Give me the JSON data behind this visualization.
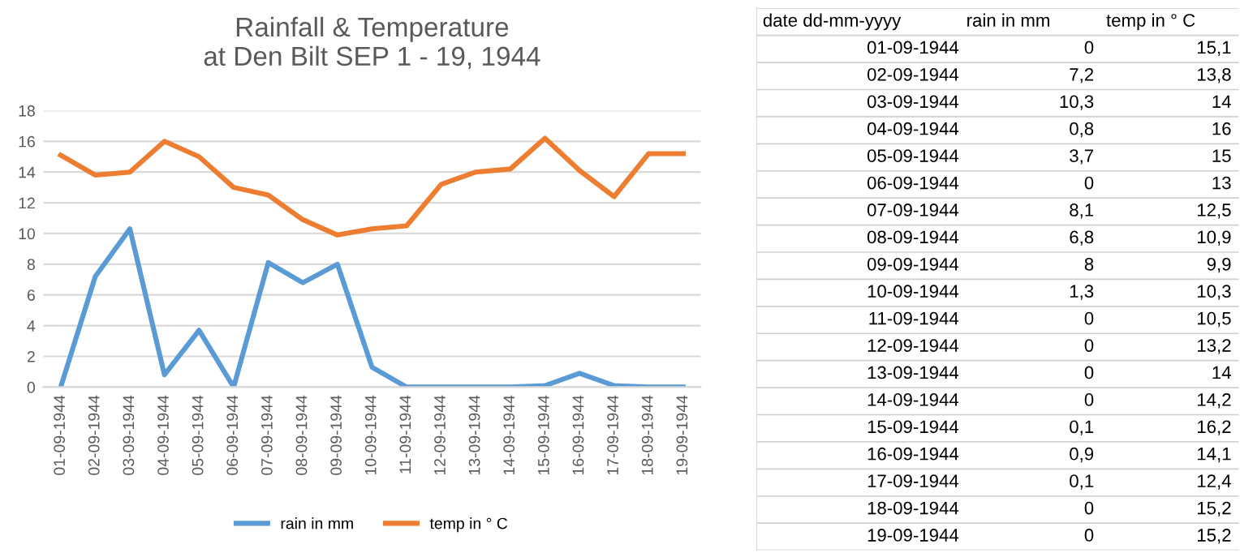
{
  "chart_data": [
    {
      "type": "line",
      "title": "Rainfall & Temperature\nat Den Bilt SEP 1 - 19, 1944",
      "categories": [
        "01-09-1944",
        "02-09-1944",
        "03-09-1944",
        "04-09-1944",
        "05-09-1944",
        "06-09-1944",
        "07-09-1944",
        "08-09-1944",
        "09-09-1944",
        "10-09-1944",
        "11-09-1944",
        "12-09-1944",
        "13-09-1944",
        "14-09-1944",
        "15-09-1944",
        "16-09-1944",
        "17-09-1944",
        "18-09-1944",
        "19-09-1944"
      ],
      "series": [
        {
          "name": "rain in mm",
          "color": "#5b9bd5",
          "values": [
            0,
            7.2,
            10.3,
            0.8,
            3.7,
            0,
            8.1,
            6.8,
            8,
            1.3,
            0,
            0,
            0,
            0,
            0.1,
            0.9,
            0.1,
            0,
            0
          ]
        },
        {
          "name": "temp in ° C",
          "color": "#ed7d31",
          "values": [
            15.1,
            13.8,
            14,
            16,
            15,
            13,
            12.5,
            10.9,
            9.9,
            10.3,
            10.5,
            13.2,
            14,
            14.2,
            16.2,
            14.1,
            12.4,
            15.2,
            15.2
          ]
        }
      ],
      "ylim": [
        0,
        18
      ],
      "yticks": [
        0,
        2,
        4,
        6,
        8,
        10,
        12,
        14,
        16,
        18
      ],
      "grid": "y",
      "legend": "bottom",
      "marker": "none",
      "line_style": "solid"
    },
    {
      "type": "other",
      "annotations": [
        "date dd-mm-yyyy",
        "rain in mm",
        "temp in ° C",
        "01-09-1944",
        "0",
        "15,1",
        "02-09-1944",
        "7,2",
        "13,8",
        "03-09-1944",
        "10,3",
        "14",
        "04-09-1944",
        "0,8",
        "16",
        "05-09-1944",
        "3,7",
        "15",
        "06-09-1944",
        "0",
        "13",
        "07-09-1944",
        "8,1",
        "12,5",
        "08-09-1944",
        "6,8",
        "10,9",
        "09-09-1944",
        "8",
        "9,9",
        "10-09-1944",
        "1,3",
        "10,3",
        "11-09-1944",
        "0",
        "10,5",
        "12-09-1944",
        "0",
        "13,2",
        "13-09-1944",
        "0",
        "14",
        "14-09-1944",
        "0",
        "14,2",
        "15-09-1944",
        "0,1",
        "16,2",
        "16-09-1944",
        "0,9",
        "14,1",
        "17-09-1944",
        "0,1",
        "12,4",
        "18-09-1944",
        "0",
        "15,2",
        "19-09-1944",
        "0",
        "15,2"
      ]
    }
  ]
}
